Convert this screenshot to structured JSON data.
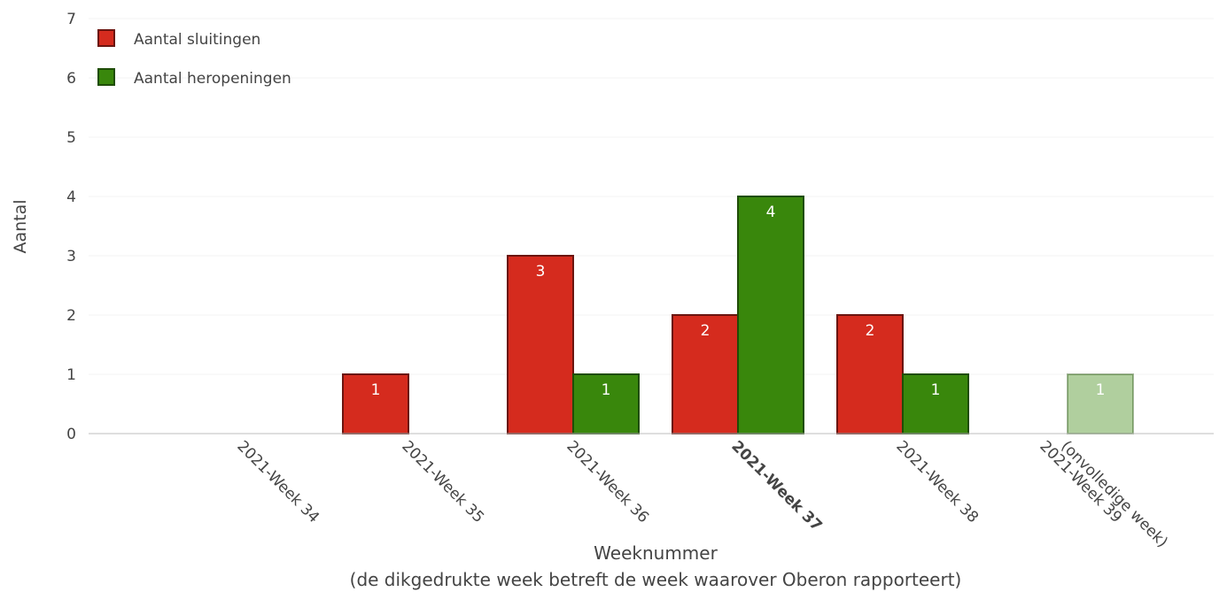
{
  "chart_data": {
    "type": "bar",
    "ylabel": "Aantal",
    "xlabel": "Weeknummer",
    "xlabel_sub": "(de dikgedrukte week betreft de week waarover Oberon rapporteert)",
    "ylim": [
      0,
      7
    ],
    "yticks": [
      0,
      1,
      2,
      3,
      4,
      5,
      6,
      7
    ],
    "grid": true,
    "legend_position": "top-left",
    "categories": [
      {
        "lines": [
          "2021-Week 34"
        ],
        "bold": false
      },
      {
        "lines": [
          "2021-Week 35"
        ],
        "bold": false
      },
      {
        "lines": [
          "2021-Week 36"
        ],
        "bold": false
      },
      {
        "lines": [
          "2021-Week 37"
        ],
        "bold": true
      },
      {
        "lines": [
          "2021-Week 38"
        ],
        "bold": false
      },
      {
        "lines": [
          "2021-Week 39",
          "(onvolledige week)"
        ],
        "bold": false,
        "faded": true
      }
    ],
    "series": [
      {
        "name": "Aantal sluitingen",
        "color": "#d52b1e",
        "stroke": "#6b1510",
        "values": [
          0,
          1,
          3,
          2,
          2,
          0
        ]
      },
      {
        "name": "Aantal heropeningen",
        "color": "#39870c",
        "stroke": "#1f4d06",
        "values": [
          0,
          0,
          1,
          4,
          1,
          1
        ]
      }
    ]
  }
}
